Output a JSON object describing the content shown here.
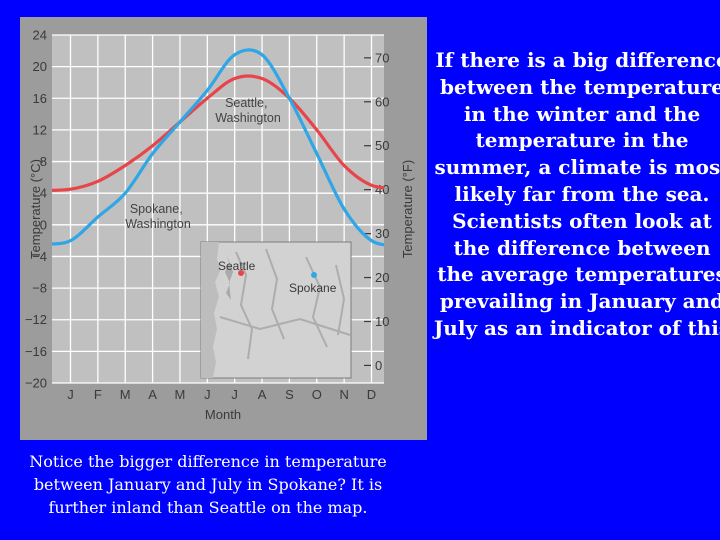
{
  "chart_data": {
    "type": "line",
    "categories": [
      "J",
      "F",
      "M",
      "A",
      "M",
      "J",
      "J",
      "A",
      "S",
      "O",
      "N",
      "D"
    ],
    "xlabel": "Month",
    "ylabel": "Temperature (°C)",
    "ylabel_right": "Temperature (°F)",
    "ylim": [
      -20,
      24
    ],
    "yticks": [
      "24",
      "20",
      "16",
      "12",
      "8",
      "4",
      "0",
      "−4",
      "−8",
      "−12",
      "−16",
      "−20"
    ],
    "yticks_values": [
      24,
      20,
      16,
      12,
      8,
      4,
      0,
      -4,
      -8,
      -12,
      -16,
      -20
    ],
    "fticks": [
      "70",
      "60",
      "50",
      "40",
      "30",
      "20",
      "10",
      "0"
    ],
    "fticks_values": [
      70,
      60,
      50,
      40,
      30,
      20,
      10,
      0
    ],
    "grid": true,
    "series": [
      {
        "name": "Seattle, Washington",
        "label_lines": [
          "Seattle,",
          "Washington"
        ],
        "color": "#e8454a",
        "values": [
          4.5,
          5.5,
          7.5,
          10,
          13,
          16,
          18.5,
          18.5,
          16,
          12,
          7.5,
          5
        ]
      },
      {
        "name": "Spokane, Washington",
        "label_lines": [
          "Spokane,",
          "Washington"
        ],
        "color": "#2fa6e6",
        "values": [
          -2,
          1,
          4,
          9,
          13,
          17,
          21.5,
          21.5,
          16,
          9,
          2,
          -2
        ]
      }
    ],
    "map_labels": {
      "seattle": "Seattle",
      "spokane": "Spokane"
    }
  },
  "caption": "Notice the bigger difference in temperature between January and July in Spokane? It is further inland than Seattle on the map.",
  "side_text": "If there is a big difference between the temperature in the winter and the temperature in the summer, a climate is most likely far from the sea. Scientists often look at the difference between the average temperatures prevailing in January and July as an indicator of this"
}
